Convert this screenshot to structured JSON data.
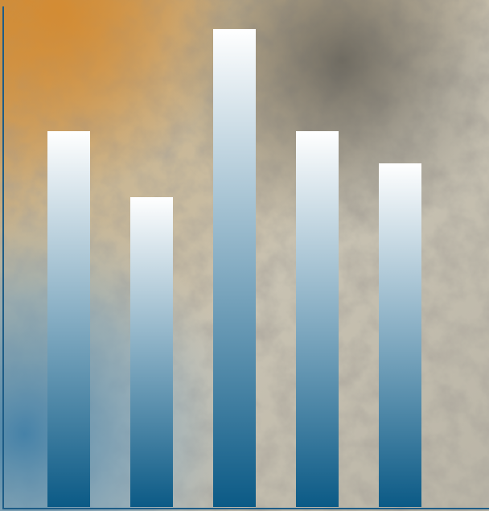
{
  "chart_data": {
    "type": "bar",
    "categories": [
      null,
      null,
      null,
      null,
      null
    ],
    "values": [
      467,
      385,
      594,
      467,
      427
    ],
    "color": "#0b5a86",
    "ylim": [
      0,
      600
    ]
  }
}
